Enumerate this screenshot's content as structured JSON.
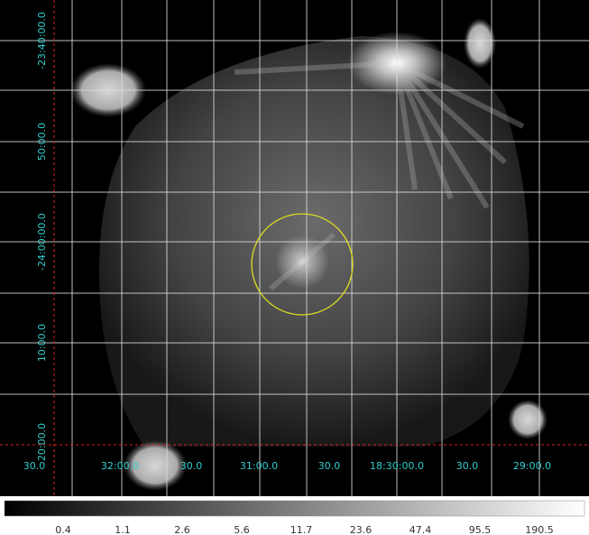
{
  "image": {
    "y_labels": [
      "-23:40:00.0",
      "50:00.0",
      "-24:00:00.0",
      "10:00.0",
      "20:00.0"
    ],
    "x_labels": [
      "30.0",
      "32:00.0",
      "30.0",
      "31:00.0",
      "30.0",
      "18:30:00.0",
      "30.0",
      "29:00.0"
    ]
  },
  "colorbar": {
    "labels": [
      0.4,
      1.1,
      2.6,
      5.6,
      11.7,
      23.6,
      47.4,
      95.5,
      190.5
    ]
  }
}
